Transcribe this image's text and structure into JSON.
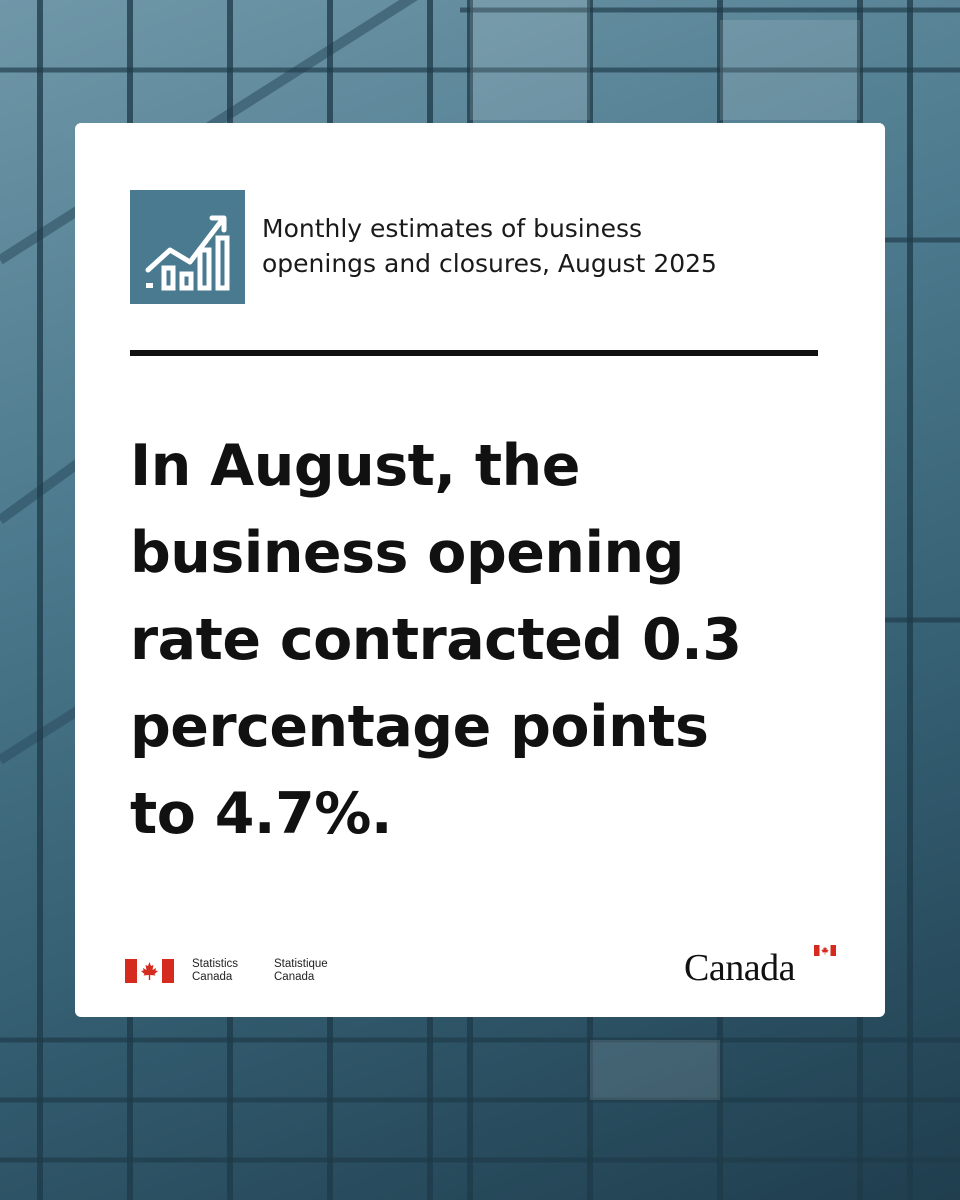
{
  "background": {
    "description_colors": [
      "#6f97a8",
      "#355f73",
      "#1f3e4e"
    ]
  },
  "card": {
    "topic_icon": "bar-chart-growth-icon",
    "topic_title_line1": "Monthly estimates of business",
    "topic_title_line2": "openings and closures, August 2025",
    "headline_lines": [
      "In August, the",
      "business opening",
      "rate contracted 0.3",
      "percentage points",
      "to 4.7%."
    ]
  },
  "footer": {
    "signature_en_line1": "Statistics",
    "signature_en_line2": "Canada",
    "signature_fr_line1": "Statistique",
    "signature_fr_line2": "Canada",
    "wordmark": "Canada",
    "flag_icon": "canada-flag-icon",
    "colors": {
      "flag_red": "#d52b1e",
      "icon_bg": "#4a7a90"
    }
  }
}
